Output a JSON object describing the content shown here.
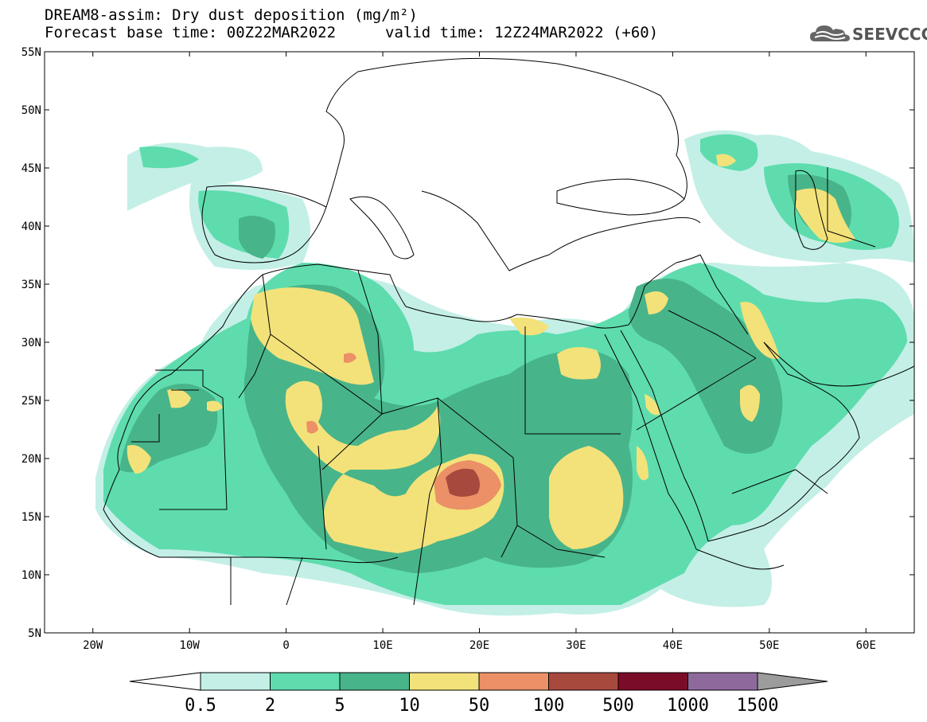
{
  "title": {
    "line1": "DREAM8-assim: Dry dust deposition (mg/m²)",
    "base": "Forecast base time: 00Z22MAR2022",
    "valid": "valid time: 12Z24MAR2022 (+60)"
  },
  "logo": {
    "text": "SEEVCCC",
    "icon": "cloud-icon"
  },
  "map": {
    "lon_range": [
      -25,
      65
    ],
    "lat_range": [
      5,
      55
    ],
    "lat_ticks": [
      "55N",
      "50N",
      "45N",
      "40N",
      "35N",
      "30N",
      "25N",
      "20N",
      "15N",
      "10N",
      "5N"
    ],
    "lon_ticks": [
      "20W",
      "10W",
      "0",
      "10E",
      "20E",
      "30E",
      "40E",
      "50E",
      "60E"
    ]
  },
  "legend": {
    "labels": [
      "0.5",
      "2",
      "5",
      "10",
      "50",
      "100",
      "500",
      "1000",
      "1500"
    ],
    "colors": [
      "#c3efe6",
      "#5edcae",
      "#48b48a",
      "#f3e27a",
      "#eb9067",
      "#a8493e",
      "#7b0c28",
      "#8e6a9c",
      "#9c9c9c"
    ]
  }
}
